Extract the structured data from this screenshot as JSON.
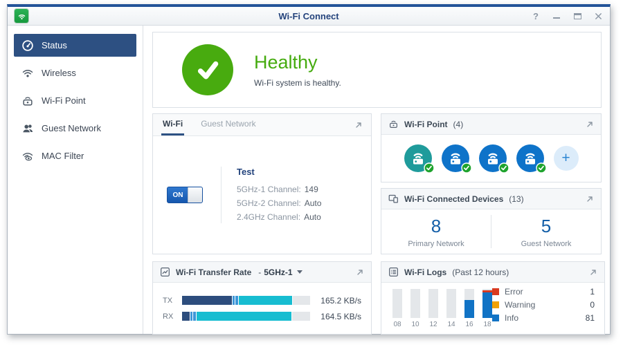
{
  "window": {
    "title": "Wi-Fi Connect",
    "help_glyph": "?"
  },
  "sidebar": {
    "items": [
      {
        "label": "Status",
        "active": true
      },
      {
        "label": "Wireless",
        "active": false
      },
      {
        "label": "Wi-Fi Point",
        "active": false
      },
      {
        "label": "Guest Network",
        "active": false
      },
      {
        "label": "MAC Filter",
        "active": false
      }
    ]
  },
  "health": {
    "title": "Healthy",
    "subtitle": "Wi-Fi system is healthy.",
    "color": "#46ab0f"
  },
  "wifi_card": {
    "tabs": [
      "Wi-Fi",
      "Guest Network"
    ],
    "active_tab": "Wi-Fi",
    "toggle_label": "ON",
    "network_name": "Test",
    "channels": [
      {
        "label": "5GHz-1 Channel:",
        "value": "149"
      },
      {
        "label": "5GHz-2 Channel:",
        "value": "Auto"
      },
      {
        "label": "2.4GHz Channel:",
        "value": "Auto"
      }
    ]
  },
  "wifi_point_card": {
    "title": "Wi-Fi Point",
    "count": "(4)",
    "points": [
      {
        "color": "#1f9b9b"
      },
      {
        "color": "#0e73c9"
      },
      {
        "color": "#0e73c9"
      },
      {
        "color": "#0e73c9"
      }
    ],
    "badge_color": "#1ea32d",
    "add_label": "+"
  },
  "devices_card": {
    "title": "Wi-Fi Connected Devices",
    "count": "(13)",
    "stats": [
      {
        "value": "8",
        "label": "Primary Network"
      },
      {
        "value": "5",
        "label": "Guest Network"
      }
    ]
  },
  "transfer_card": {
    "title": "Wi-Fi Transfer Rate",
    "separator": "-",
    "band": "5GHz-1",
    "chart_data": {
      "type": "bar",
      "orientation": "horizontal-stacked",
      "track_color": "#e4e7ea",
      "rows": [
        {
          "label": "TX",
          "value": "165.2 KB/s",
          "segments": [
            {
              "color": "#2d4d7d",
              "pct": 39
            },
            {
              "color": "#3e97d8",
              "pct": 1.8
            },
            {
              "color": "#3e97d8",
              "pct": 1.8
            },
            {
              "color": "#17bdd1",
              "pct": 42
            }
          ]
        },
        {
          "label": "RX",
          "value": "164.5 KB/s",
          "segments": [
            {
              "color": "#2d4d7d",
              "pct": 6
            },
            {
              "color": "#3e97d8",
              "pct": 1.8
            },
            {
              "color": "#3e97d8",
              "pct": 1.8
            },
            {
              "color": "#17bdd1",
              "pct": 74
            }
          ]
        }
      ]
    }
  },
  "logs_card": {
    "title": "Wi-Fi Logs",
    "subtitle": "(Past 12 hours)",
    "chart_data": {
      "type": "bar",
      "stacked": true,
      "categories": [
        "08",
        "10",
        "12",
        "14",
        "16",
        "18"
      ],
      "track_color": "#e4e7ea",
      "series": [
        {
          "name": "Info",
          "color": "#1173c5",
          "heights_pct": [
            0,
            0,
            0,
            0,
            60,
            88
          ]
        },
        {
          "name": "Error",
          "color": "#d93a20",
          "heights_pct": [
            0,
            0,
            0,
            0,
            0,
            5
          ]
        },
        {
          "name": "Warning",
          "color": "#f2a104",
          "heights_pct": [
            0,
            0,
            0,
            0,
            0,
            0
          ]
        }
      ]
    },
    "legend": [
      {
        "label": "Error",
        "color": "#d93a20",
        "count": "1"
      },
      {
        "label": "Warning",
        "color": "#f2a104",
        "count": "0"
      },
      {
        "label": "Info",
        "color": "#1173c5",
        "count": "81"
      }
    ]
  }
}
